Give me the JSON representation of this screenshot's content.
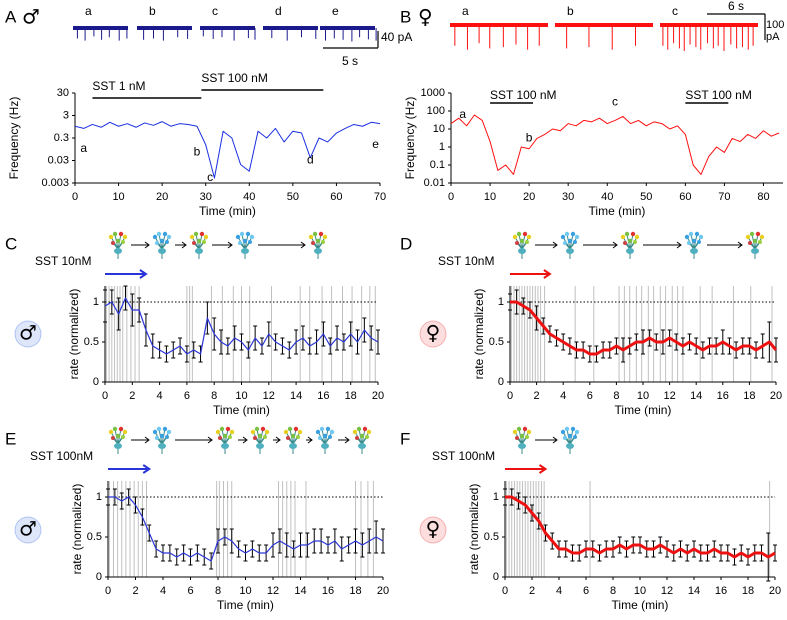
{
  "chart_data": [
    {
      "type": "trace",
      "panel": "A",
      "symbol": "♂",
      "symbol_color": "#2255dd",
      "color": "#1a1a8c",
      "segments": [
        {
          "label": "a",
          "spike_times": [
            0.4,
            1.1,
            1.9,
            2.6,
            3.3,
            4.2,
            4.9
          ],
          "spike_amps": [
            25,
            30,
            20,
            28,
            22,
            30,
            25
          ]
        },
        {
          "label": "b",
          "spike_times": [
            0.6,
            1.5,
            2.4,
            3.7,
            4.6
          ],
          "spike_amps": [
            28,
            25,
            30,
            22,
            26
          ]
        },
        {
          "label": "c",
          "spike_times": [
            0.3,
            1.2,
            2.0,
            3.1,
            4.4,
            5.0
          ],
          "spike_amps": [
            20,
            26,
            22,
            30,
            24,
            28
          ]
        },
        {
          "label": "d",
          "spike_times": [
            0.8,
            2.2,
            3.5,
            4.8
          ],
          "spike_amps": [
            24,
            30,
            22,
            26
          ]
        },
        {
          "label": "e",
          "spike_times": [
            0.5,
            1.3,
            2.1,
            2.9,
            3.6,
            4.4,
            5.1
          ],
          "spike_amps": [
            30,
            25,
            28,
            32,
            22,
            27,
            30
          ]
        }
      ],
      "scale_bars": {
        "x": {
          "value": 5,
          "label": "5 s"
        },
        "y": {
          "value": 40,
          "label": "40 pA"
        }
      }
    },
    {
      "type": "line",
      "log_y": true,
      "color": "#1a2fe0",
      "xlabel": "Time (min)",
      "ylabel": "Frequency (Hz)",
      "xlim": [
        0,
        70
      ],
      "xticks": [
        0,
        10,
        20,
        30,
        40,
        50,
        60,
        70
      ],
      "ylim": [
        0.003,
        30
      ],
      "yticks": [
        0.003,
        0.03,
        0.3,
        3,
        30
      ],
      "x": [
        0,
        2,
        4,
        6,
        8,
        10,
        12,
        14,
        16,
        18,
        20,
        22,
        24,
        26,
        28,
        30,
        32,
        34,
        36,
        38,
        40,
        42,
        44,
        46,
        48,
        50,
        52,
        54,
        56,
        58,
        60,
        62,
        64,
        66,
        68,
        70
      ],
      "values": [
        1.0,
        0.8,
        1.2,
        0.9,
        1.5,
        1.0,
        1.3,
        0.9,
        1.4,
        1.1,
        1.6,
        1.0,
        1.3,
        1.2,
        1.0,
        0.15,
        0.005,
        0.6,
        0.3,
        0.02,
        0.01,
        0.6,
        0.3,
        0.8,
        0.2,
        0.6,
        0.5,
        0.04,
        0.3,
        0.2,
        0.5,
        0.8,
        1.2,
        1.0,
        1.5,
        1.3
      ],
      "bars": [
        {
          "label": "SST 1 nM",
          "x": [
            4,
            29
          ]
        },
        {
          "label": "SST 100 nM",
          "x": [
            29,
            57
          ]
        }
      ],
      "annotations": [
        {
          "label": "a",
          "x": 2,
          "y": 0.1
        },
        {
          "label": "b",
          "x": 28,
          "y": 0.07
        },
        {
          "label": "c",
          "x": 31,
          "y": 0.005
        },
        {
          "label": "d",
          "x": 54,
          "y": 0.03
        },
        {
          "label": "e",
          "x": 69,
          "y": 0.15
        }
      ]
    },
    {
      "type": "trace",
      "panel": "B",
      "symbol": "♀",
      "symbol_color": "#ee2222",
      "color": "#ff1010",
      "segments": [
        {
          "label": "a",
          "spike_times": [
            0.5,
            1.8,
            3.0,
            4.1,
            5.5,
            6.8,
            8.0,
            9.2
          ],
          "spike_amps": [
            80,
            95,
            70,
            90,
            85,
            75,
            95,
            80
          ]
        },
        {
          "label": "b",
          "spike_times": [
            1.2,
            3.5,
            5.9,
            8.3
          ],
          "spike_amps": [
            90,
            85,
            95,
            80
          ]
        },
        {
          "label": "c",
          "spike_times": [
            0.3,
            0.8,
            1.4,
            2.0,
            2.5,
            3.1,
            3.7,
            4.2,
            4.9,
            5.5,
            6.0,
            6.6,
            7.3,
            7.9,
            8.5,
            9.1,
            9.6
          ],
          "spike_amps": [
            80,
            95,
            70,
            90,
            100,
            75,
            85,
            95,
            70,
            90,
            80,
            100,
            75,
            90,
            85,
            95,
            80
          ]
        }
      ],
      "scale_bars": {
        "x": {
          "value": 6,
          "label": "6 s"
        },
        "y": {
          "value": 100,
          "label": "100 pA"
        }
      }
    },
    {
      "type": "line",
      "log_y": true,
      "color": "#ff1010",
      "xlabel": "Time (min)",
      "ylabel": "Frequency (Hz)",
      "xlim": [
        0,
        85
      ],
      "xticks": [
        0,
        10,
        20,
        30,
        40,
        50,
        60,
        70,
        80
      ],
      "ylim": [
        0.01,
        1000
      ],
      "yticks": [
        0.01,
        0.1,
        1,
        10,
        100,
        1000
      ],
      "x": [
        0,
        2,
        4,
        6,
        8,
        10,
        12,
        14,
        16,
        18,
        20,
        22,
        24,
        26,
        28,
        30,
        32,
        34,
        36,
        38,
        40,
        42,
        44,
        46,
        48,
        50,
        52,
        54,
        56,
        58,
        60,
        62,
        64,
        66,
        68,
        70,
        72,
        74,
        76,
        78,
        80,
        82,
        84
      ],
      "values": [
        20,
        40,
        15,
        60,
        30,
        2,
        0.05,
        0.1,
        0.03,
        1,
        0.8,
        3,
        5,
        10,
        8,
        20,
        15,
        30,
        25,
        40,
        20,
        30,
        50,
        20,
        30,
        15,
        25,
        20,
        10,
        15,
        5,
        0.1,
        0.03,
        0.3,
        1,
        0.5,
        3,
        2,
        5,
        3,
        8,
        4,
        6
      ],
      "bars": [
        {
          "label": "SST 100 nM",
          "x": [
            10,
            21
          ]
        },
        {
          "label": "SST 100 nM",
          "x": [
            60,
            71
          ]
        }
      ],
      "annotations": [
        {
          "label": "a",
          "x": 3,
          "y": 60
        },
        {
          "label": "b",
          "x": 20,
          "y": 3
        },
        {
          "label": "c",
          "x": 42,
          "y": 300
        }
      ]
    },
    {
      "type": "line",
      "panel": "C",
      "symbol": "♂",
      "symbol_color": "#2255dd",
      "treatment": "SST 10nM",
      "treatment_span": [
        0,
        3
      ],
      "color": "#2a35d8",
      "error_color": "#000000",
      "event_color": "#c0c0c0",
      "xlabel": "Time (min)",
      "ylabel": "rate (normalized)",
      "xlim": [
        0,
        20
      ],
      "xticks": [
        0,
        2,
        4,
        6,
        8,
        10,
        12,
        14,
        16,
        18,
        20
      ],
      "ylim": [
        0,
        1.2
      ],
      "yticks": [
        0,
        0.5,
        1
      ],
      "reference": 1,
      "x": [
        0,
        0.5,
        1,
        1.5,
        2,
        2.5,
        3,
        3.5,
        4,
        4.5,
        5,
        5.5,
        6,
        6.5,
        7,
        7.5,
        8,
        8.5,
        9,
        9.5,
        10,
        10.5,
        11,
        11.5,
        12,
        12.5,
        13,
        13.5,
        14,
        14.5,
        15,
        15.5,
        16,
        16.5,
        17,
        17.5,
        18,
        18.5,
        19,
        19.5,
        20
      ],
      "values": [
        0.95,
        1.0,
        0.85,
        1.05,
        0.9,
        0.9,
        0.65,
        0.45,
        0.4,
        0.35,
        0.4,
        0.45,
        0.35,
        0.4,
        0.35,
        0.8,
        0.6,
        0.5,
        0.45,
        0.55,
        0.5,
        0.4,
        0.55,
        0.45,
        0.6,
        0.5,
        0.45,
        0.4,
        0.5,
        0.55,
        0.45,
        0.5,
        0.6,
        0.45,
        0.55,
        0.5,
        0.6,
        0.5,
        0.65,
        0.55,
        0.5
      ],
      "errors": [
        0.2,
        0.15,
        0.2,
        0.15,
        0.2,
        0.15,
        0.2,
        0.15,
        0.1,
        0.1,
        0.1,
        0.1,
        0.1,
        0.1,
        0.1,
        0.2,
        0.2,
        0.15,
        0.1,
        0.15,
        0.1,
        0.1,
        0.15,
        0.1,
        0.15,
        0.1,
        0.1,
        0.1,
        0.15,
        0.15,
        0.1,
        0.15,
        0.15,
        0.1,
        0.15,
        0.1,
        0.15,
        0.15,
        0.15,
        0.15,
        0.15
      ],
      "events": [
        0.1,
        0.3,
        0.5,
        0.7,
        0.9,
        1.1,
        1.3,
        1.6,
        1.9,
        2.2,
        2.5,
        6.0,
        6.2,
        6.4,
        7.8,
        8.6,
        9.4,
        10.0,
        10.6,
        12.2,
        14.3,
        15.0,
        15.9,
        16.6,
        17.4,
        18.1,
        18.8,
        19.4,
        19.8
      ]
    },
    {
      "type": "line",
      "panel": "D",
      "symbol": "♀",
      "symbol_color": "#ee2222",
      "treatment": "SST 10nM",
      "treatment_span": [
        0,
        3
      ],
      "color": "#ee1111",
      "error_color": "#000000",
      "event_color": "#c0c0c0",
      "xlabel": "Time (min)",
      "ylabel": "rate (normalized)",
      "xlim": [
        0,
        20
      ],
      "xticks": [
        0,
        2,
        4,
        6,
        8,
        10,
        12,
        14,
        16,
        18,
        20
      ],
      "ylim": [
        0,
        1.2
      ],
      "yticks": [
        0,
        0.5,
        1
      ],
      "reference": 1,
      "x": [
        0,
        0.5,
        1,
        1.5,
        2,
        2.5,
        3,
        3.5,
        4,
        4.5,
        5,
        5.5,
        6,
        6.5,
        7,
        7.5,
        8,
        8.5,
        9,
        9.5,
        10,
        10.5,
        11,
        11.5,
        12,
        12.5,
        13,
        13.5,
        14,
        14.5,
        15,
        15.5,
        16,
        16.5,
        17,
        17.5,
        18,
        18.5,
        19,
        19.5,
        20
      ],
      "values": [
        1.0,
        1.0,
        0.95,
        0.9,
        0.8,
        0.7,
        0.6,
        0.55,
        0.5,
        0.45,
        0.4,
        0.4,
        0.35,
        0.35,
        0.4,
        0.4,
        0.45,
        0.4,
        0.45,
        0.5,
        0.5,
        0.55,
        0.5,
        0.5,
        0.55,
        0.5,
        0.45,
        0.5,
        0.45,
        0.4,
        0.45,
        0.45,
        0.5,
        0.45,
        0.4,
        0.45,
        0.45,
        0.4,
        0.45,
        0.5,
        0.4
      ],
      "errors": [
        0.1,
        0.15,
        0.1,
        0.1,
        0.15,
        0.1,
        0.1,
        0.1,
        0.1,
        0.1,
        0.1,
        0.1,
        0.1,
        0.1,
        0.1,
        0.1,
        0.1,
        0.15,
        0.1,
        0.1,
        0.15,
        0.1,
        0.1,
        0.15,
        0.1,
        0.1,
        0.1,
        0.1,
        0.1,
        0.1,
        0.1,
        0.1,
        0.15,
        0.1,
        0.1,
        0.1,
        0.1,
        0.1,
        0.15,
        0.25,
        0.15
      ],
      "events": [
        0.1,
        0.3,
        0.5,
        0.7,
        0.9,
        1.1,
        1.3,
        1.5,
        1.7,
        1.9,
        2.1,
        2.3,
        2.6,
        4.9,
        6.3,
        8.2,
        8.6,
        9.0,
        9.5,
        9.9,
        10.4,
        10.8,
        11.3,
        11.7,
        12.2,
        12.6,
        13.0,
        14.3,
        15.2,
        16.8,
        18.1,
        19.7
      ]
    },
    {
      "type": "line",
      "panel": "E",
      "symbol": "♂",
      "symbol_color": "#2255dd",
      "treatment": "SST 100nM",
      "treatment_span": [
        0,
        3
      ],
      "color": "#2a35d8",
      "error_color": "#000000",
      "event_color": "#c0c0c0",
      "xlabel": "Time (min)",
      "ylabel": "rate (normalized)",
      "xlim": [
        0,
        20
      ],
      "xticks": [
        0,
        2,
        4,
        6,
        8,
        10,
        12,
        14,
        16,
        18,
        20
      ],
      "ylim": [
        0,
        1.2
      ],
      "yticks": [
        0,
        0.5,
        1
      ],
      "reference": 1,
      "x": [
        0,
        0.5,
        1,
        1.5,
        2,
        2.5,
        3,
        3.5,
        4,
        4.5,
        5,
        5.5,
        6,
        6.5,
        7,
        7.5,
        8,
        8.5,
        9,
        9.5,
        10,
        10.5,
        11,
        11.5,
        12,
        12.5,
        13,
        13.5,
        14,
        14.5,
        15,
        15.5,
        16,
        16.5,
        17,
        17.5,
        18,
        18.5,
        19,
        19.5,
        20
      ],
      "values": [
        1.0,
        1.0,
        0.95,
        1.0,
        0.9,
        0.75,
        0.55,
        0.35,
        0.3,
        0.3,
        0.25,
        0.3,
        0.25,
        0.3,
        0.25,
        0.2,
        0.45,
        0.5,
        0.45,
        0.35,
        0.3,
        0.35,
        0.3,
        0.3,
        0.4,
        0.45,
        0.4,
        0.35,
        0.4,
        0.4,
        0.45,
        0.45,
        0.4,
        0.45,
        0.35,
        0.4,
        0.45,
        0.4,
        0.45,
        0.5,
        0.45
      ],
      "errors": [
        0.1,
        0.1,
        0.1,
        0.1,
        0.1,
        0.1,
        0.1,
        0.1,
        0.1,
        0.1,
        0.1,
        0.1,
        0.1,
        0.1,
        0.1,
        0.1,
        0.15,
        0.1,
        0.15,
        0.1,
        0.1,
        0.1,
        0.1,
        0.1,
        0.15,
        0.15,
        0.15,
        0.1,
        0.15,
        0.15,
        0.15,
        0.15,
        0.1,
        0.15,
        0.15,
        0.1,
        0.15,
        0.15,
        0.15,
        0.2,
        0.15
      ],
      "events": [
        0.1,
        0.4,
        0.7,
        1.0,
        1.3,
        1.6,
        1.9,
        2.2,
        2.5,
        2.8,
        7.9,
        8.1,
        8.4,
        8.7,
        9.0,
        12.4,
        12.7,
        13.0,
        13.3,
        13.6,
        14.4,
        18.0,
        18.4,
        18.9,
        19.3
      ]
    },
    {
      "type": "line",
      "panel": "F",
      "symbol": "♀",
      "symbol_color": "#ee2222",
      "treatment": "SST 100nM",
      "treatment_span": [
        0,
        3
      ],
      "color": "#ee1111",
      "error_color": "#000000",
      "event_color": "#c0c0c0",
      "xlabel": "Time (min)",
      "ylabel": "rate (normalized)",
      "xlim": [
        0,
        20
      ],
      "xticks": [
        0,
        2,
        4,
        6,
        8,
        10,
        12,
        14,
        16,
        18,
        20
      ],
      "ylim": [
        0,
        1.2
      ],
      "yticks": [
        0,
        0.5,
        1
      ],
      "reference": 1,
      "x": [
        0,
        0.5,
        1,
        1.5,
        2,
        2.5,
        3,
        3.5,
        4,
        4.5,
        5,
        5.5,
        6,
        6.5,
        7,
        7.5,
        8,
        8.5,
        9,
        9.5,
        10,
        10.5,
        11,
        11.5,
        12,
        12.5,
        13,
        13.5,
        14,
        14.5,
        15,
        15.5,
        16,
        16.5,
        17,
        17.5,
        18,
        18.5,
        19,
        19.5,
        20
      ],
      "values": [
        1.0,
        1.0,
        0.95,
        0.9,
        0.8,
        0.7,
        0.55,
        0.45,
        0.35,
        0.35,
        0.3,
        0.3,
        0.35,
        0.35,
        0.3,
        0.35,
        0.35,
        0.4,
        0.35,
        0.4,
        0.4,
        0.35,
        0.35,
        0.4,
        0.35,
        0.3,
        0.35,
        0.3,
        0.35,
        0.3,
        0.3,
        0.35,
        0.3,
        0.3,
        0.25,
        0.3,
        0.25,
        0.3,
        0.3,
        0.25,
        0.3
      ],
      "errors": [
        0.1,
        0.1,
        0.1,
        0.1,
        0.1,
        0.1,
        0.1,
        0.1,
        0.1,
        0.1,
        0.1,
        0.1,
        0.1,
        0.1,
        0.1,
        0.1,
        0.1,
        0.1,
        0.1,
        0.1,
        0.1,
        0.1,
        0.1,
        0.1,
        0.1,
        0.1,
        0.1,
        0.1,
        0.1,
        0.1,
        0.1,
        0.1,
        0.1,
        0.1,
        0.1,
        0.1,
        0.1,
        0.1,
        0.1,
        0.3,
        0.1
      ],
      "events": [
        0.1,
        0.3,
        0.5,
        0.7,
        0.9,
        1.1,
        1.3,
        1.5,
        1.7,
        1.9,
        2.1,
        2.3,
        2.5,
        2.7,
        2.9,
        6.3,
        19.6
      ]
    }
  ]
}
